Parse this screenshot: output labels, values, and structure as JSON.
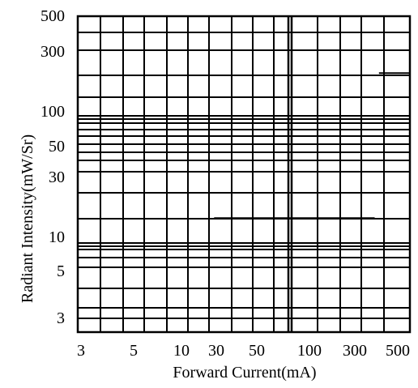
{
  "chart_data": {
    "type": "line",
    "title": "",
    "xlabel": "Forward Current(mA)",
    "ylabel": "Radiant Intensity(mW/Sr)",
    "x_scale": "log",
    "y_scale": "log",
    "x_ticks": [
      3,
      5,
      10,
      30,
      50,
      100,
      300,
      500
    ],
    "x_tick_labels": [
      "3",
      "5",
      "10",
      "30",
      "50",
      "100",
      "300",
      "500"
    ],
    "y_ticks": [
      3,
      5,
      10,
      30,
      50,
      100,
      300,
      500
    ],
    "y_tick_labels": [
      "3",
      "5",
      "10",
      "30",
      "50",
      "100",
      "300",
      "500"
    ],
    "grid": true,
    "series": [
      {
        "x": [
          400,
          700
        ],
        "y": [
          200,
          200
        ]
      },
      {
        "x": [
          28,
          380
        ],
        "y": [
          14,
          14
        ]
      }
    ]
  }
}
